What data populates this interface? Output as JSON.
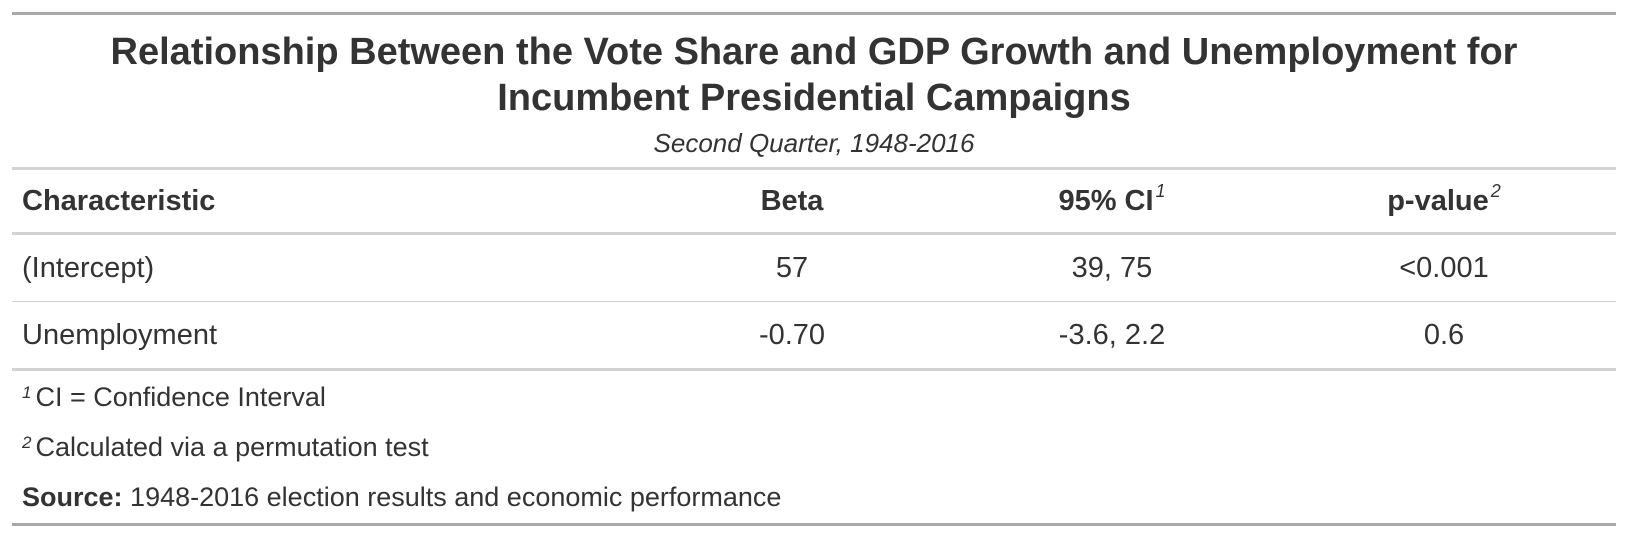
{
  "title": "Relationship Between the Vote Share and GDP Growth and Unemployment for Incumbent Presidential Campaigns",
  "subtitle": "Second Quarter, 1948-2016",
  "columns": {
    "characteristic": "Characteristic",
    "beta": "Beta",
    "ci": "95% CI",
    "ci_note": "1",
    "pvalue": "p-value",
    "pvalue_note": "2"
  },
  "rows": [
    {
      "characteristic": "(Intercept)",
      "beta": "57",
      "ci": "39, 75",
      "pvalue": "<0.001"
    },
    {
      "characteristic": "Unemployment",
      "beta": "-0.70",
      "ci": "-3.6, 2.2",
      "pvalue": "0.6"
    }
  ],
  "footnotes": [
    {
      "mark": "1",
      "text": "CI = Confidence Interval"
    },
    {
      "mark": "2",
      "text": "Calculated via a permutation test"
    }
  ],
  "source": {
    "label": "Source:",
    "text": "1948-2016 election results and economic performance"
  }
}
